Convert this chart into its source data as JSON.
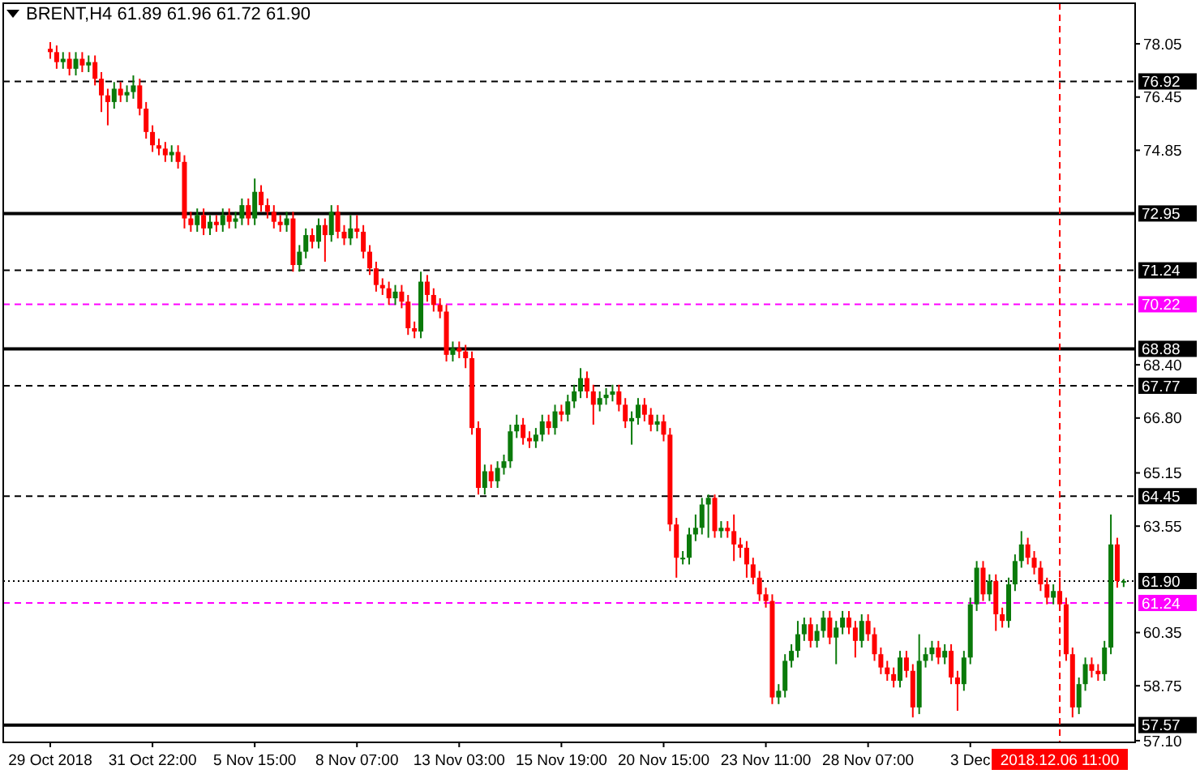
{
  "chart_data": {
    "type": "candlestick",
    "title": "BRENT,H4 61.89 61.96 61.72 61.90",
    "categories": [
      "29 Oct 2018",
      null,
      null,
      null,
      null,
      null,
      null,
      null,
      null,
      null,
      null,
      null,
      null,
      null,
      null,
      null,
      "31 Oct 22:00",
      null,
      null,
      null,
      null,
      null,
      null,
      null,
      null,
      null,
      null,
      null,
      null,
      null,
      null,
      null,
      "5 Nov 15:00",
      null,
      null,
      null,
      null,
      null,
      null,
      null,
      null,
      null,
      null,
      null,
      null,
      null,
      null,
      null,
      "8 Nov 07:00",
      null,
      null,
      null,
      null,
      null,
      null,
      null,
      null,
      null,
      null,
      null,
      null,
      null,
      null,
      null,
      "13 Nov 03:00",
      null,
      null,
      null,
      null,
      null,
      null,
      null,
      null,
      null,
      null,
      null,
      null,
      null,
      null,
      null,
      "15 Nov 19:00",
      null,
      null,
      null,
      null,
      null,
      null,
      null,
      null,
      null,
      null,
      null,
      null,
      null,
      null,
      null,
      "20 Nov 15:00",
      null,
      null,
      null,
      null,
      null,
      null,
      null,
      null,
      null,
      null,
      null,
      null,
      null,
      null,
      null,
      "23 Nov 11:00",
      null,
      null,
      null,
      null,
      null,
      null,
      null,
      null,
      null,
      null,
      null,
      null,
      null,
      null,
      null,
      "28 Nov 07:00",
      null,
      null,
      null,
      null,
      null,
      null,
      null,
      null,
      null,
      null,
      null,
      null,
      null,
      null,
      null,
      "3 Dec",
      null,
      null,
      null,
      null,
      null,
      null,
      null,
      null,
      null,
      null,
      null,
      null,
      null,
      "2018.12.06 11:00",
      null,
      null,
      null,
      null,
      null,
      null,
      null,
      null,
      null,
      null
    ],
    "ohlc": [
      [
        77.9,
        78.1,
        77.6,
        77.8
      ],
      [
        77.8,
        78.0,
        77.3,
        77.5
      ],
      [
        77.5,
        77.8,
        77.3,
        77.6
      ],
      [
        77.6,
        77.8,
        77.1,
        77.3
      ],
      [
        77.3,
        77.8,
        77.1,
        77.6
      ],
      [
        77.6,
        77.8,
        77.2,
        77.4
      ],
      [
        77.4,
        77.7,
        77.2,
        77.5
      ],
      [
        77.5,
        77.7,
        76.8,
        77.0
      ],
      [
        77.0,
        77.2,
        76.0,
        76.5
      ],
      [
        76.5,
        76.7,
        75.6,
        76.3
      ],
      [
        76.3,
        76.9,
        76.1,
        76.7
      ],
      [
        76.7,
        76.9,
        76.3,
        76.5
      ],
      [
        76.5,
        76.8,
        76.3,
        76.6
      ],
      [
        76.6,
        77.1,
        76.4,
        76.8
      ],
      [
        76.8,
        77.0,
        75.9,
        76.1
      ],
      [
        76.1,
        76.3,
        75.2,
        75.4
      ],
      [
        75.4,
        75.6,
        74.8,
        75.0
      ],
      [
        75.0,
        75.2,
        74.7,
        74.9
      ],
      [
        74.9,
        75.1,
        74.5,
        74.7
      ],
      [
        74.7,
        75.0,
        74.5,
        74.8
      ],
      [
        74.8,
        75.0,
        74.3,
        74.5
      ],
      [
        74.5,
        74.7,
        72.5,
        72.8
      ],
      [
        72.8,
        73.0,
        72.4,
        72.6
      ],
      [
        72.6,
        73.1,
        72.4,
        72.9
      ],
      [
        72.9,
        73.1,
        72.3,
        72.5
      ],
      [
        72.5,
        72.9,
        72.3,
        72.7
      ],
      [
        72.7,
        72.9,
        72.4,
        72.6
      ],
      [
        72.6,
        73.1,
        72.4,
        72.9
      ],
      [
        72.9,
        73.1,
        72.5,
        72.7
      ],
      [
        72.7,
        73.0,
        72.5,
        72.8
      ],
      [
        72.8,
        73.4,
        72.6,
        73.2
      ],
      [
        73.2,
        73.4,
        72.6,
        72.8
      ],
      [
        72.8,
        74.0,
        72.6,
        73.6
      ],
      [
        73.6,
        73.8,
        73.0,
        73.2
      ],
      [
        73.2,
        73.4,
        72.8,
        73.0
      ],
      [
        73.0,
        73.2,
        72.5,
        72.7
      ],
      [
        72.7,
        72.9,
        72.4,
        72.6
      ],
      [
        72.6,
        73.0,
        72.4,
        72.8
      ],
      [
        72.8,
        73.0,
        71.2,
        71.4
      ],
      [
        71.4,
        72.0,
        71.2,
        71.8
      ],
      [
        71.8,
        72.5,
        71.6,
        72.3
      ],
      [
        72.3,
        72.5,
        71.9,
        72.1
      ],
      [
        72.1,
        72.8,
        71.9,
        72.6
      ],
      [
        72.6,
        72.8,
        71.5,
        72.3
      ],
      [
        72.3,
        73.2,
        72.1,
        73.0
      ],
      [
        73.0,
        73.2,
        72.2,
        72.4
      ],
      [
        72.4,
        72.6,
        72.0,
        72.2
      ],
      [
        72.2,
        72.9,
        72.0,
        72.5
      ],
      [
        72.5,
        72.9,
        72.2,
        72.4
      ],
      [
        72.4,
        72.6,
        71.6,
        71.8
      ],
      [
        71.8,
        72.0,
        71.1,
        71.3
      ],
      [
        71.3,
        71.5,
        70.6,
        70.8
      ],
      [
        70.8,
        71.0,
        70.5,
        70.7
      ],
      [
        70.7,
        70.9,
        70.2,
        70.4
      ],
      [
        70.4,
        70.8,
        70.2,
        70.6
      ],
      [
        70.6,
        70.8,
        70.1,
        70.3
      ],
      [
        70.3,
        70.5,
        69.3,
        69.5
      ],
      [
        69.5,
        69.7,
        69.2,
        69.4
      ],
      [
        69.4,
        71.2,
        69.2,
        70.9
      ],
      [
        70.9,
        71.1,
        70.3,
        70.5
      ],
      [
        70.5,
        70.7,
        70.0,
        70.2
      ],
      [
        70.2,
        70.4,
        69.8,
        70.0
      ],
      [
        70.0,
        70.2,
        68.5,
        68.7
      ],
      [
        68.7,
        69.1,
        68.5,
        68.9
      ],
      [
        68.9,
        69.1,
        68.6,
        68.8
      ],
      [
        68.8,
        69.0,
        68.3,
        68.6
      ],
      [
        68.6,
        68.8,
        66.3,
        66.5
      ],
      [
        66.5,
        66.7,
        64.5,
        64.7
      ],
      [
        64.7,
        65.4,
        64.5,
        65.2
      ],
      [
        65.2,
        65.4,
        64.7,
        64.9
      ],
      [
        64.9,
        65.5,
        64.7,
        65.3
      ],
      [
        65.3,
        65.7,
        65.1,
        65.5
      ],
      [
        65.5,
        66.6,
        65.3,
        66.4
      ],
      [
        66.4,
        66.9,
        66.2,
        66.6
      ],
      [
        66.6,
        66.8,
        66.0,
        66.2
      ],
      [
        66.2,
        66.4,
        65.9,
        66.1
      ],
      [
        66.1,
        66.5,
        65.9,
        66.3
      ],
      [
        66.3,
        66.9,
        66.1,
        66.7
      ],
      [
        66.7,
        66.9,
        66.3,
        66.5
      ],
      [
        66.5,
        67.2,
        66.3,
        67.0
      ],
      [
        67.0,
        67.2,
        66.7,
        66.9
      ],
      [
        66.9,
        67.5,
        66.7,
        67.3
      ],
      [
        67.3,
        67.8,
        67.1,
        67.6
      ],
      [
        67.6,
        68.3,
        67.4,
        68.0
      ],
      [
        68.0,
        68.2,
        67.4,
        67.6
      ],
      [
        67.6,
        67.8,
        66.6,
        67.2
      ],
      [
        67.2,
        67.6,
        67.0,
        67.4
      ],
      [
        67.4,
        67.7,
        67.2,
        67.5
      ],
      [
        67.5,
        67.8,
        67.3,
        67.6
      ],
      [
        67.6,
        67.8,
        67.0,
        67.2
      ],
      [
        67.2,
        67.4,
        66.5,
        66.7
      ],
      [
        66.7,
        67.0,
        66.0,
        66.8
      ],
      [
        66.8,
        67.4,
        66.6,
        67.2
      ],
      [
        67.2,
        67.4,
        66.7,
        66.9
      ],
      [
        66.9,
        67.1,
        66.4,
        66.6
      ],
      [
        66.6,
        66.9,
        66.4,
        66.7
      ],
      [
        66.7,
        66.9,
        66.1,
        66.3
      ],
      [
        66.3,
        66.5,
        63.4,
        63.6
      ],
      [
        63.6,
        63.8,
        62.0,
        62.6
      ],
      [
        62.6,
        62.8,
        62.4,
        62.6
      ],
      [
        62.6,
        63.5,
        62.4,
        63.3
      ],
      [
        63.3,
        63.9,
        63.1,
        63.5
      ],
      [
        63.5,
        64.4,
        63.3,
        64.2
      ],
      [
        64.2,
        64.5,
        63.2,
        64.4
      ],
      [
        64.4,
        64.5,
        63.2,
        63.4
      ],
      [
        63.4,
        63.7,
        63.2,
        63.5
      ],
      [
        63.5,
        63.7,
        63.2,
        63.4
      ],
      [
        63.4,
        63.9,
        62.5,
        63.0
      ],
      [
        63.0,
        63.2,
        62.6,
        62.9
      ],
      [
        62.9,
        63.1,
        62.0,
        62.4
      ],
      [
        62.4,
        62.6,
        61.8,
        62.0
      ],
      [
        62.0,
        62.2,
        61.3,
        61.5
      ],
      [
        61.5,
        61.7,
        61.1,
        61.3
      ],
      [
        61.3,
        61.5,
        58.2,
        58.4
      ],
      [
        58.4,
        58.8,
        58.2,
        58.6
      ],
      [
        58.6,
        59.7,
        58.4,
        59.5
      ],
      [
        59.5,
        60.0,
        59.3,
        59.8
      ],
      [
        59.8,
        60.7,
        59.6,
        60.3
      ],
      [
        60.3,
        60.8,
        60.1,
        60.6
      ],
      [
        60.6,
        60.8,
        59.9,
        60.1
      ],
      [
        60.1,
        60.6,
        59.9,
        60.4
      ],
      [
        60.4,
        61.0,
        60.2,
        60.8
      ],
      [
        60.8,
        61.0,
        60.0,
        60.2
      ],
      [
        60.2,
        60.7,
        59.4,
        60.5
      ],
      [
        60.5,
        61.0,
        60.3,
        60.8
      ],
      [
        60.8,
        61.0,
        60.3,
        60.5
      ],
      [
        60.5,
        60.7,
        59.6,
        60.1
      ],
      [
        60.1,
        60.9,
        59.9,
        60.7
      ],
      [
        60.7,
        60.9,
        60.1,
        60.3
      ],
      [
        60.3,
        60.5,
        59.5,
        59.7
      ],
      [
        59.7,
        59.9,
        59.1,
        59.3
      ],
      [
        59.3,
        59.5,
        58.9,
        59.1
      ],
      [
        59.1,
        59.3,
        58.7,
        58.9
      ],
      [
        58.9,
        59.8,
        58.7,
        59.6
      ],
      [
        59.6,
        59.8,
        59.0,
        59.2
      ],
      [
        59.2,
        59.4,
        57.8,
        58.1
      ],
      [
        58.1,
        60.3,
        57.9,
        59.5
      ],
      [
        59.5,
        59.9,
        59.3,
        59.7
      ],
      [
        59.7,
        60.1,
        59.5,
        59.9
      ],
      [
        59.9,
        60.1,
        59.4,
        59.6
      ],
      [
        59.6,
        60.0,
        59.4,
        59.8
      ],
      [
        59.8,
        60.0,
        58.8,
        59.0
      ],
      [
        59.0,
        59.2,
        58.0,
        58.8
      ],
      [
        58.8,
        59.8,
        58.6,
        59.6
      ],
      [
        59.6,
        61.4,
        59.4,
        61.2
      ],
      [
        61.2,
        62.5,
        61.0,
        62.3
      ],
      [
        62.3,
        62.5,
        61.3,
        61.5
      ],
      [
        61.5,
        62.1,
        61.3,
        61.9
      ],
      [
        61.9,
        62.1,
        60.4,
        60.9
      ],
      [
        60.9,
        61.1,
        60.5,
        60.7
      ],
      [
        60.7,
        62.0,
        60.5,
        61.8
      ],
      [
        61.8,
        62.7,
        61.6,
        62.5
      ],
      [
        62.5,
        63.4,
        62.3,
        63.0
      ],
      [
        63.0,
        63.2,
        62.4,
        62.6
      ],
      [
        62.6,
        62.8,
        62.1,
        62.3
      ],
      [
        62.3,
        62.5,
        61.6,
        61.8
      ],
      [
        61.8,
        62.0,
        61.2,
        61.4
      ],
      [
        61.4,
        61.8,
        61.2,
        61.6
      ],
      [
        61.6,
        62.0,
        61.0,
        61.2
      ],
      [
        61.2,
        61.4,
        59.5,
        59.7
      ],
      [
        59.7,
        59.9,
        57.8,
        58.1
      ],
      [
        58.1,
        59.0,
        57.9,
        58.8
      ],
      [
        58.8,
        59.6,
        58.6,
        59.4
      ],
      [
        59.4,
        59.6,
        59.0,
        59.2
      ],
      [
        59.2,
        59.4,
        58.9,
        59.1
      ],
      [
        59.1,
        60.1,
        58.9,
        59.9
      ],
      [
        59.9,
        63.9,
        59.7,
        63.0
      ],
      [
        63.0,
        63.2,
        61.7,
        61.9
      ],
      [
        61.89,
        61.96,
        61.72,
        61.9
      ]
    ],
    "ylim": [
      57.05,
      79.27
    ],
    "yticks": [
      78.05,
      76.45,
      74.85,
      {
        "value": 68.4,
        "label": "68.40"
      },
      {
        "value": 66.8,
        "label": "66.80"
      },
      65.15,
      63.55,
      60.35,
      58.75,
      {
        "value": 57.1,
        "label": "57.10"
      }
    ],
    "ref_lines": [
      {
        "axis": "y",
        "value": 76.92,
        "label": "76.92",
        "color": "#000000",
        "line_style": "dashed"
      },
      {
        "axis": "y",
        "value": 72.95,
        "label": "72.95",
        "color": "#000000",
        "line_style": "solid"
      },
      {
        "axis": "y",
        "value": 71.24,
        "label": "71.24",
        "color": "#000000",
        "line_style": "dashed"
      },
      {
        "axis": "y",
        "value": 70.22,
        "label": "70.22",
        "color": "#ff00ff",
        "line_style": "dashed"
      },
      {
        "axis": "y",
        "value": 68.88,
        "label": "68.88",
        "color": "#000000",
        "line_style": "solid"
      },
      {
        "axis": "y",
        "value": 67.77,
        "label": "67.77",
        "color": "#000000",
        "line_style": "dashed"
      },
      {
        "axis": "y",
        "value": 64.45,
        "label": "64.45",
        "color": "#000000",
        "line_style": "dashed"
      },
      {
        "axis": "y",
        "value": 61.9,
        "label": "61.90",
        "color": "#000000",
        "line_style": "dotted"
      },
      {
        "axis": "y",
        "value": 61.24,
        "label": "61.24",
        "color": "#ff00ff",
        "line_style": "dashed"
      },
      {
        "axis": "y",
        "value": 57.57,
        "label": "57.57",
        "color": "#000000",
        "line_style": "solid"
      },
      {
        "axis": "x",
        "value": "2018.12.06 11:00",
        "color": "#ff0000",
        "line_style": "dashed"
      }
    ],
    "grid": false
  }
}
